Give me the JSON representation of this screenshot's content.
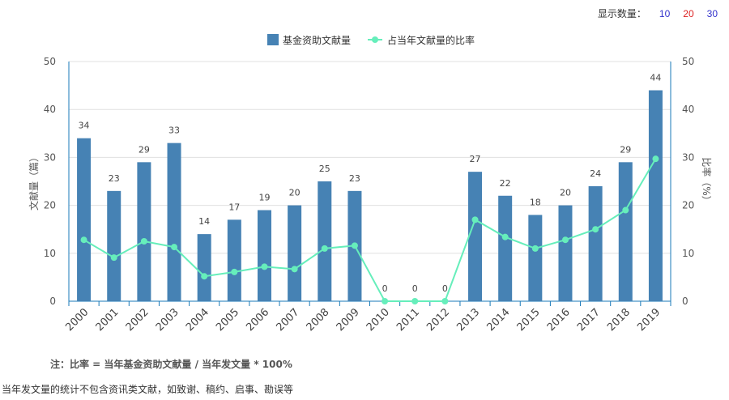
{
  "display_count": {
    "label": "显示数量：",
    "options": [
      {
        "label": "10",
        "color": "#3333cc"
      },
      {
        "label": "20",
        "color": "#dd2222"
      },
      {
        "label": "30",
        "color": "#3333cc"
      }
    ]
  },
  "note": "注：比率 = 当年基金资助文献量 / 当年发文量 * 100%",
  "footnote": "当年发文量的统计不包含资讯类文献，如致谢、稿约、启事、勘误等",
  "colors": {
    "bar": "#4682b4",
    "line": "#66eebb",
    "axis": "#1a7ab8",
    "grid": "#e0e0e0"
  },
  "chart_data": {
    "type": "bar",
    "categories": [
      "2000",
      "2001",
      "2002",
      "2003",
      "2004",
      "2005",
      "2006",
      "2007",
      "2008",
      "2009",
      "2010",
      "2011",
      "2012",
      "2013",
      "2014",
      "2015",
      "2016",
      "2017",
      "2018",
      "2019"
    ],
    "series": [
      {
        "name": "基金资助文献量",
        "type": "bar",
        "axis": "left",
        "values": [
          34,
          23,
          29,
          33,
          14,
          17,
          19,
          20,
          25,
          23,
          0,
          0,
          0,
          27,
          22,
          18,
          20,
          24,
          29,
          44
        ]
      },
      {
        "name": "占当年文献量的比率",
        "type": "line",
        "axis": "right",
        "values": [
          12.8,
          9.1,
          12.5,
          11.3,
          5.2,
          6.1,
          7.2,
          6.7,
          11.0,
          11.6,
          0,
          0,
          0,
          17.0,
          13.4,
          11.0,
          12.8,
          15.0,
          19.0,
          29.7
        ]
      }
    ],
    "ylabel": "文献量（篇）",
    "y2label": "比率（%）",
    "ylim": [
      0,
      50
    ],
    "y2lim": [
      0,
      50
    ],
    "yticks": [
      0,
      10,
      20,
      30,
      40,
      50
    ],
    "grid": true,
    "legend": "top-center"
  }
}
